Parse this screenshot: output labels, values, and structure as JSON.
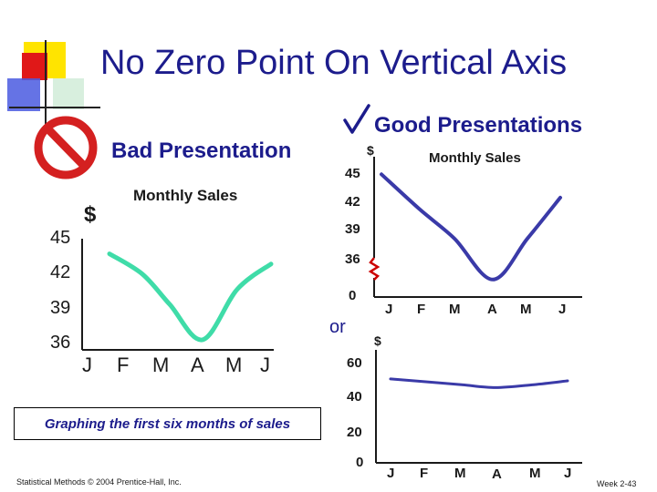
{
  "slide": {
    "title": "No Zero Point On Vertical Axis",
    "bad_heading": "Bad Presentation",
    "good_heading": "Good Presentations",
    "or_text": "or",
    "caption": "Graphing the first six months of sales",
    "footer_left": "Statistical Methods © 2004 Prentice-Hall, Inc.",
    "footer_right": "Week 2-43",
    "colors": {
      "title": "#1c1c8c",
      "bad_line": "#3fdca8",
      "good_line": "#3a3aa8",
      "break_mark": "#cc0000",
      "no_sign": "#d42020",
      "check": "#1c1c8c"
    },
    "icons": [
      "no-sign-icon",
      "checkmark-icon",
      "axis-break-icon",
      "decorative-squares-icon"
    ]
  },
  "chart_data": [
    {
      "type": "line",
      "title": "Monthly Sales",
      "ylabel": "$",
      "categories": [
        "J",
        "F",
        "M",
        "A",
        "M",
        "J"
      ],
      "series": [
        {
          "values": [
            44.5,
            42.5,
            39.5,
            36.0,
            41.0,
            43.5
          ]
        }
      ],
      "ylim": [
        35,
        46
      ],
      "yticks": [
        45,
        42,
        39,
        36
      ],
      "grid": false
    },
    {
      "type": "line",
      "title": "Monthly Sales",
      "ylabel": "$",
      "categories": [
        "J",
        "F",
        "M",
        "A",
        "M",
        "J"
      ],
      "series": [
        {
          "values": [
            45.5,
            42.5,
            40.0,
            36.5,
            40.0,
            43.5
          ]
        }
      ],
      "ylim": [
        35,
        47
      ],
      "yticks": [
        45,
        42,
        39,
        36
      ],
      "zero_label": "0",
      "axis_break": true,
      "grid": false
    },
    {
      "type": "line",
      "ylabel": "$",
      "categories": [
        "J",
        "F",
        "M",
        "A",
        "M",
        "J"
      ],
      "series": [
        {
          "values": [
            44.0,
            42.5,
            41.0,
            39.5,
            41.0,
            43.0
          ]
        }
      ],
      "ylim": [
        0,
        65
      ],
      "yticks": [
        60,
        40,
        20,
        0
      ],
      "grid": false
    }
  ]
}
